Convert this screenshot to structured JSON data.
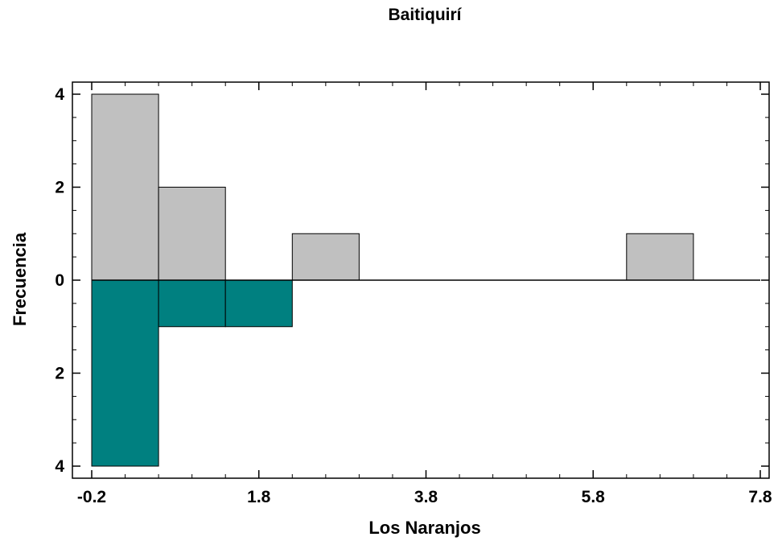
{
  "chart_data": {
    "type": "bar",
    "subtype": "back-to-back histogram",
    "title": "Baitiquirí",
    "xlabel": "Los Naranjos",
    "ylabel": "Frecuencia",
    "xlim": [
      -0.2,
      7.8
    ],
    "x_ticks": [
      "-0.2",
      "1.8",
      "3.8",
      "5.8",
      "7.8"
    ],
    "y_ticks_upper": [
      "4",
      "2",
      "0"
    ],
    "y_ticks_lower": [
      "2",
      "4"
    ],
    "ylim_upper": [
      0,
      4
    ],
    "ylim_lower": [
      0,
      4
    ],
    "bin_width": 0.8,
    "series": [
      {
        "position": "upper",
        "color": "#c0c0c0",
        "bins": [
          {
            "x0": -0.2,
            "x1": 0.6,
            "count": 4
          },
          {
            "x0": 0.6,
            "x1": 1.4,
            "count": 2
          },
          {
            "x0": 2.2,
            "x1": 3.0,
            "count": 1
          },
          {
            "x0": 6.2,
            "x1": 7.0,
            "count": 1
          }
        ]
      },
      {
        "position": "lower",
        "color": "#008080",
        "bins": [
          {
            "x0": -0.2,
            "x1": 0.6,
            "count": 4
          },
          {
            "x0": 0.6,
            "x1": 1.4,
            "count": 1
          },
          {
            "x0": 1.4,
            "x1": 2.2,
            "count": 1
          }
        ]
      }
    ],
    "grid": false
  }
}
